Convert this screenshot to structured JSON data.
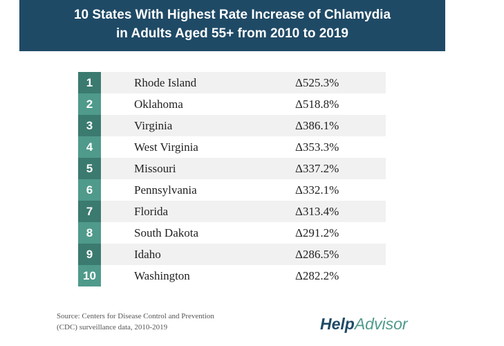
{
  "title_line1": "10 States With Highest Rate Increase of Chlamydia",
  "title_line2": "in Adults Aged 55+ from 2010 to 2019",
  "rows": [
    {
      "rank": "1",
      "state": "Rhode Island",
      "value": "Δ525.3%"
    },
    {
      "rank": "2",
      "state": "Oklahoma",
      "value": "Δ518.8%"
    },
    {
      "rank": "3",
      "state": "Virginia",
      "value": "Δ386.1%"
    },
    {
      "rank": "4",
      "state": "West Virginia",
      "value": "Δ353.3%"
    },
    {
      "rank": "5",
      "state": "Missouri",
      "value": "Δ337.2%"
    },
    {
      "rank": "6",
      "state": "Pennsylvania",
      "value": "Δ332.1%"
    },
    {
      "rank": "7",
      "state": "Florida",
      "value": "Δ313.4%"
    },
    {
      "rank": "8",
      "state": "South Dakota",
      "value": "Δ291.2%"
    },
    {
      "rank": "9",
      "state": "Idaho",
      "value": "Δ286.5%"
    },
    {
      "rank": "10",
      "state": "Washington",
      "value": "Δ282.2%"
    }
  ],
  "source_line1": "Source: Centers for Disease Control and Prevention",
  "source_line2": "(CDC) surveillance data, 2010-2019",
  "logo": {
    "part1": "Help",
    "part2": "Advisor"
  },
  "colors": {
    "banner": "#1f4a66",
    "teal_dark": "#3b7a6f",
    "teal_light": "#4f9a8b"
  }
}
